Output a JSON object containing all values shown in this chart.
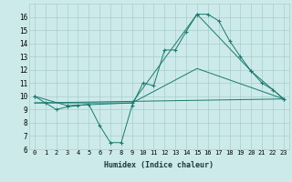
{
  "xlabel": "Humidex (Indice chaleur)",
  "bg_color": "#cdeaea",
  "line_color": "#1a7a6e",
  "grid_color": "#aacccc",
  "ylim": [
    6,
    17
  ],
  "xlim": [
    -0.5,
    23.5
  ],
  "yticks": [
    6,
    7,
    8,
    9,
    10,
    11,
    12,
    13,
    14,
    15,
    16
  ],
  "xticks": [
    0,
    1,
    2,
    3,
    4,
    5,
    6,
    7,
    8,
    9,
    10,
    11,
    12,
    13,
    14,
    15,
    16,
    17,
    18,
    19,
    20,
    21,
    22,
    23
  ],
  "series": [
    {
      "x": [
        0,
        1,
        2,
        3,
        4,
        5,
        6,
        7,
        8,
        9,
        10,
        11,
        12,
        13,
        14,
        15,
        16,
        17,
        18,
        19,
        20,
        21,
        22,
        23
      ],
      "y": [
        10,
        9.5,
        9.0,
        9.2,
        9.3,
        9.4,
        7.8,
        6.5,
        6.5,
        9.3,
        11.0,
        10.8,
        13.5,
        13.5,
        14.9,
        16.2,
        16.2,
        15.7,
        14.2,
        13.0,
        11.9,
        11.0,
        10.5,
        9.8
      ],
      "marker": "+"
    },
    {
      "x": [
        0,
        3,
        9,
        15,
        20,
        23
      ],
      "y": [
        10,
        9.3,
        9.5,
        16.2,
        11.9,
        9.8
      ],
      "marker": "+"
    },
    {
      "x": [
        0,
        23
      ],
      "y": [
        9.5,
        9.8
      ],
      "marker": null
    },
    {
      "x": [
        0,
        9,
        15,
        23
      ],
      "y": [
        9.5,
        9.5,
        12.1,
        9.8
      ],
      "marker": null
    }
  ]
}
